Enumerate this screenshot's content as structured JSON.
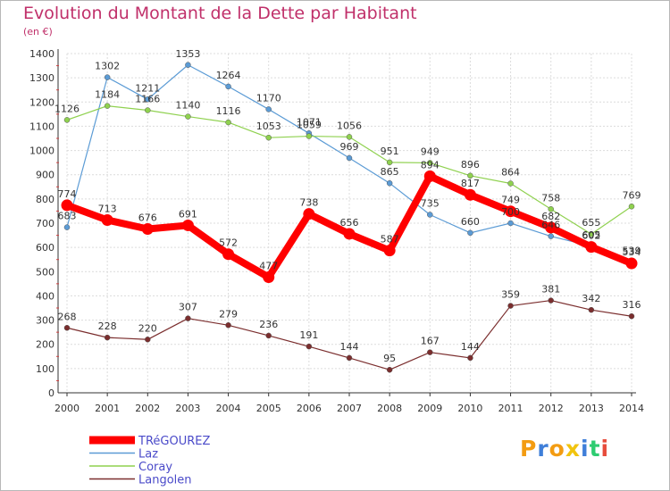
{
  "chart_data": {
    "type": "line",
    "title": "Evolution du Montant de la Dette par Habitant",
    "subtitle": "(en €)",
    "x": [
      "2000",
      "2001",
      "2002",
      "2003",
      "2004",
      "2005",
      "2006",
      "2007",
      "2008",
      "2009",
      "2010",
      "2011",
      "2012",
      "2013",
      "2014"
    ],
    "ylim": [
      0,
      1400
    ],
    "yticks": [
      0,
      100,
      200,
      300,
      400,
      500,
      600,
      700,
      800,
      900,
      1000,
      1100,
      1200,
      1300,
      1400
    ],
    "grid": true,
    "legend_position": "bottom-left",
    "series": [
      {
        "name": "TRéGOUREZ",
        "color": "#ff0000",
        "emphasis": true,
        "values": [
          774,
          713,
          676,
          691,
          572,
          477,
          738,
          656,
          587,
          894,
          817,
          749,
          682,
          602,
          534
        ]
      },
      {
        "name": "Laz",
        "color": "#5b9bd5",
        "emphasis": false,
        "values": [
          683,
          1302,
          1211,
          1353,
          1264,
          1170,
          1071,
          969,
          865,
          735,
          660,
          700,
          646,
          605,
          539
        ]
      },
      {
        "name": "Coray",
        "color": "#8fd14f",
        "emphasis": false,
        "values": [
          1126,
          1184,
          1166,
          1140,
          1116,
          1053,
          1059,
          1056,
          951,
          949,
          896,
          864,
          758,
          655,
          769
        ]
      },
      {
        "name": "Langolen",
        "color": "#7b2e2e",
        "emphasis": false,
        "values": [
          268,
          228,
          220,
          307,
          279,
          236,
          191,
          144,
          95,
          167,
          144,
          359,
          381,
          342,
          316
        ]
      }
    ]
  },
  "logo": {
    "letters": [
      "P",
      "r",
      "o",
      "x",
      "i",
      "t",
      "i"
    ],
    "colors": [
      "#f39c12",
      "#3f7fd9",
      "#f39c12",
      "#f1c40f",
      "#3f7fd9",
      "#2ecc71",
      "#e74c3c"
    ]
  }
}
